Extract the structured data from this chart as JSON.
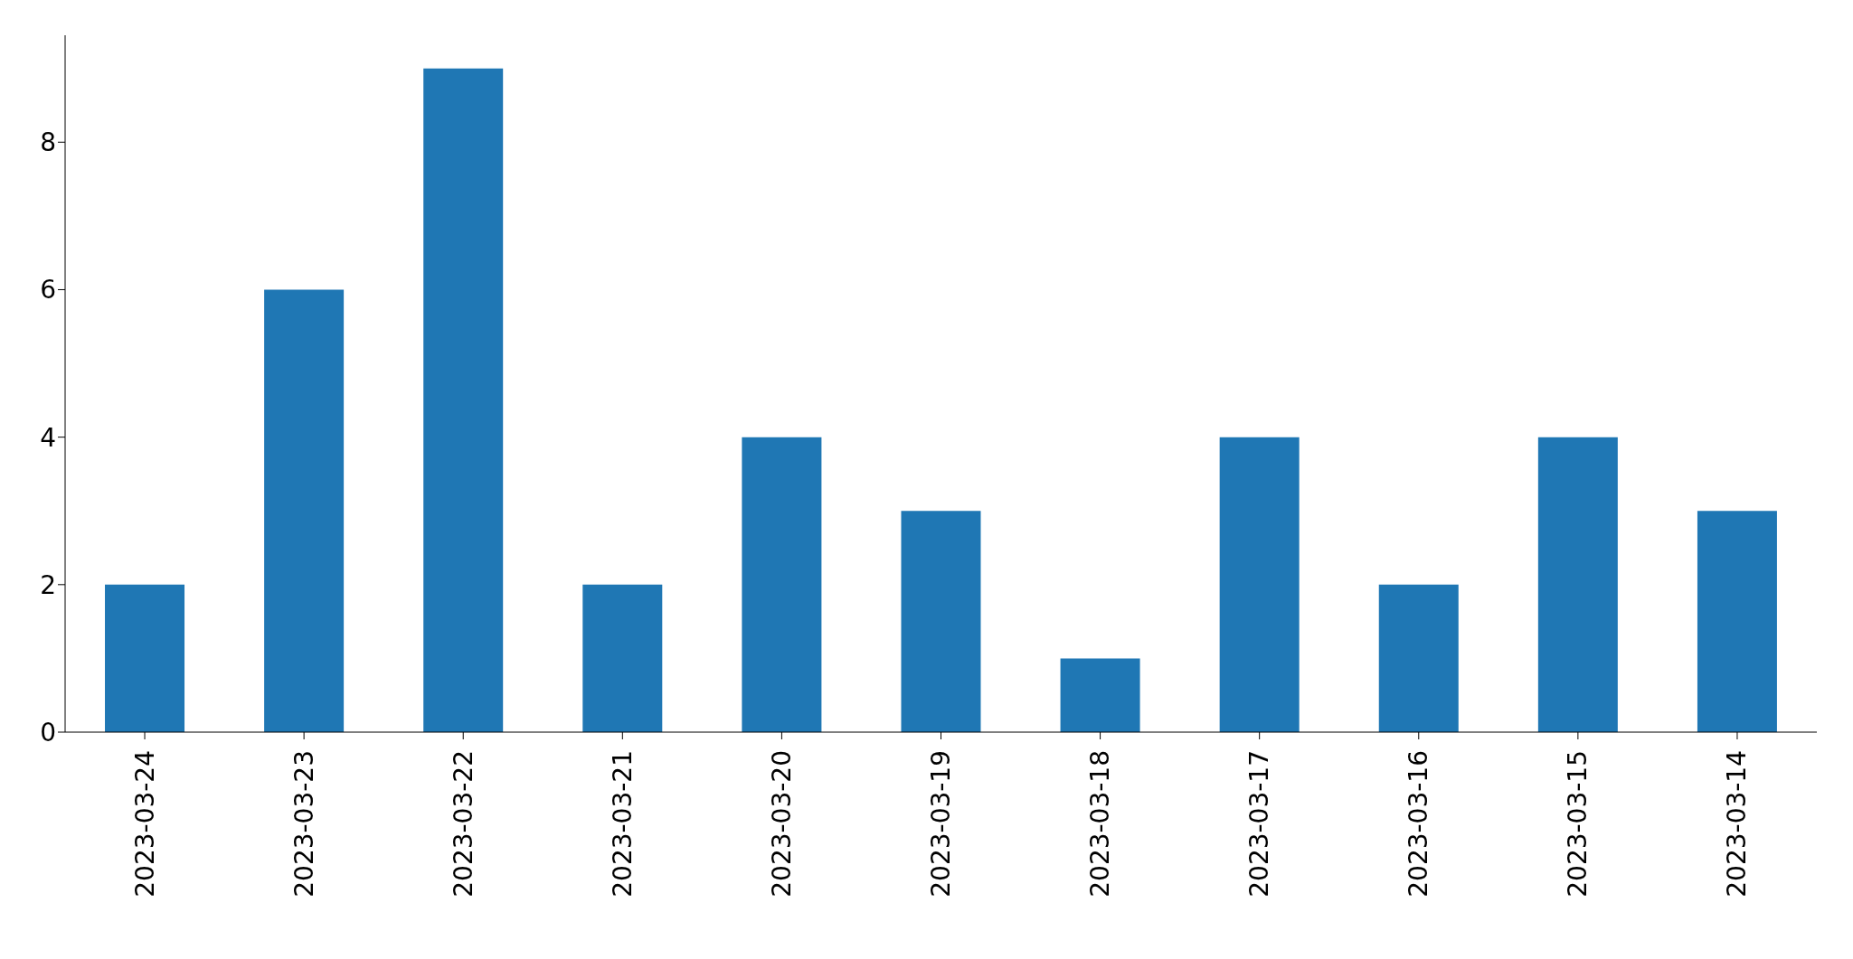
{
  "chart_data": {
    "type": "bar",
    "categories": [
      "2023-03-24",
      "2023-03-23",
      "2023-03-22",
      "2023-03-21",
      "2023-03-20",
      "2023-03-19",
      "2023-03-18",
      "2023-03-17",
      "2023-03-16",
      "2023-03-15",
      "2023-03-14"
    ],
    "values": [
      2,
      6,
      9,
      2,
      4,
      3,
      1,
      4,
      2,
      4,
      3
    ],
    "color": "#1f77b4",
    "ylim": [
      0,
      9.45
    ],
    "yticks": [
      0,
      2,
      4,
      6,
      8
    ],
    "grid": false,
    "legend": false
  }
}
